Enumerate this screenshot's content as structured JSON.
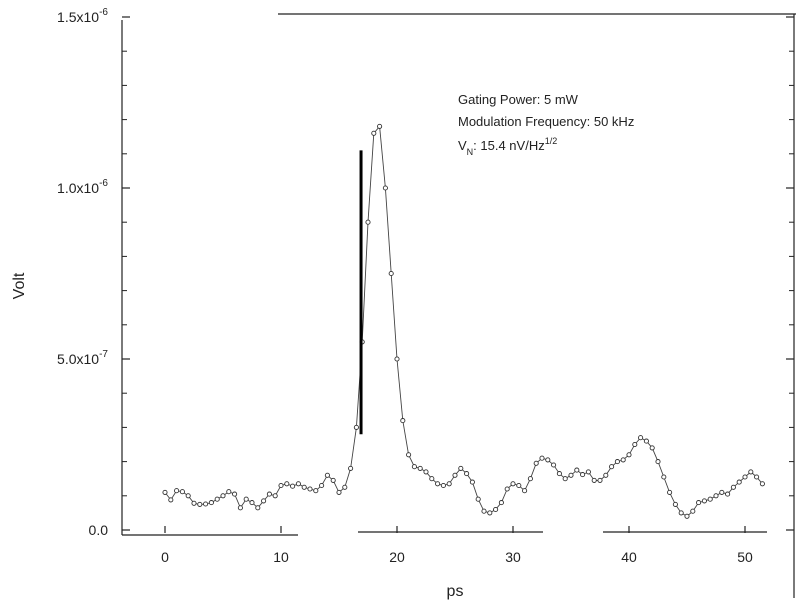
{
  "chart_data": {
    "type": "scatter",
    "title": "",
    "xlabel": "ps",
    "ylabel": "Volt",
    "xlim": [
      -3.5,
      53
    ],
    "ylim": [
      -2e-08,
      1.5e-06
    ],
    "x_ticks": [
      0,
      10,
      20,
      30,
      40,
      50
    ],
    "x_tick_labels": [
      "0",
      "10",
      "20",
      "30",
      "40",
      "50"
    ],
    "y_ticks": [
      0,
      5e-07,
      1e-06,
      1.5e-06
    ],
    "y_tick_labels": [
      {
        "mantissa": "0.0",
        "exponent": ""
      },
      {
        "mantissa": "5.0x10",
        "exponent": "-7"
      },
      {
        "mantissa": "1.0x10",
        "exponent": "-6"
      },
      {
        "mantissa": "1.5x10",
        "exponent": "-6"
      }
    ],
    "grid": false,
    "annotations": {
      "gating": "Gating Power: 5 mW",
      "modulation": "Modulation Frequency: 50 kHz",
      "vn_main": "V",
      "vn_sub": "N",
      "vn_rest": ": 15.4 nV/Hz",
      "vn_sup": "1/2"
    },
    "marker_line": {
      "x": 16.9,
      "y_from": 2.8e-07,
      "y_to": 1.11e-06
    },
    "series": [
      {
        "points": [
          [
            0.0,
            1.1e-07
          ],
          [
            0.5,
            8.8e-08
          ],
          [
            1.0,
            1.15e-07
          ],
          [
            1.5,
            1.12e-07
          ],
          [
            2.0,
            1e-07
          ],
          [
            2.5,
            7.8e-08
          ],
          [
            3.0,
            7.5e-08
          ],
          [
            3.5,
            7.6e-08
          ],
          [
            4.0,
            8e-08
          ],
          [
            4.5,
            9e-08
          ],
          [
            5.0,
            1e-07
          ],
          [
            5.5,
            1.12e-07
          ],
          [
            6.0,
            1.05e-07
          ],
          [
            6.5,
            6.5e-08
          ],
          [
            7.0,
            9e-08
          ],
          [
            7.5,
            8e-08
          ],
          [
            8.0,
            6.5e-08
          ],
          [
            8.5,
            8.5e-08
          ],
          [
            9.0,
            1.05e-07
          ],
          [
            9.5,
            1e-07
          ],
          [
            10.0,
            1.3e-07
          ],
          [
            10.5,
            1.35e-07
          ],
          [
            11.0,
            1.28e-07
          ],
          [
            11.5,
            1.35e-07
          ],
          [
            12.0,
            1.25e-07
          ],
          [
            12.5,
            1.2e-07
          ],
          [
            13.0,
            1.15e-07
          ],
          [
            13.5,
            1.3e-07
          ],
          [
            14.0,
            1.6e-07
          ],
          [
            14.5,
            1.45e-07
          ],
          [
            15.0,
            1.1e-07
          ],
          [
            15.5,
            1.25e-07
          ],
          [
            16.0,
            1.8e-07
          ],
          [
            16.5,
            3e-07
          ],
          [
            17.0,
            5.5e-07
          ],
          [
            17.5,
            9e-07
          ],
          [
            18.0,
            1.16e-06
          ],
          [
            18.5,
            1.18e-06
          ],
          [
            19.0,
            1e-06
          ],
          [
            19.5,
            7.5e-07
          ],
          [
            20.0,
            5e-07
          ],
          [
            20.5,
            3.2e-07
          ],
          [
            21.0,
            2.2e-07
          ],
          [
            21.5,
            1.85e-07
          ],
          [
            22.0,
            1.8e-07
          ],
          [
            22.5,
            1.7e-07
          ],
          [
            23.0,
            1.5e-07
          ],
          [
            23.5,
            1.35e-07
          ],
          [
            24.0,
            1.3e-07
          ],
          [
            24.5,
            1.35e-07
          ],
          [
            25.0,
            1.6e-07
          ],
          [
            25.5,
            1.8e-07
          ],
          [
            26.0,
            1.65e-07
          ],
          [
            26.5,
            1.4e-07
          ],
          [
            27.0,
            9e-08
          ],
          [
            27.5,
            5.5e-08
          ],
          [
            28.0,
            5e-08
          ],
          [
            28.5,
            6e-08
          ],
          [
            29.0,
            8e-08
          ],
          [
            29.5,
            1.2e-07
          ],
          [
            30.0,
            1.35e-07
          ],
          [
            30.5,
            1.3e-07
          ],
          [
            31.0,
            1.15e-07
          ],
          [
            31.5,
            1.5e-07
          ],
          [
            32.0,
            1.95e-07
          ],
          [
            32.5,
            2.1e-07
          ],
          [
            33.0,
            2.05e-07
          ],
          [
            33.5,
            1.9e-07
          ],
          [
            34.0,
            1.65e-07
          ],
          [
            34.5,
            1.5e-07
          ],
          [
            35.0,
            1.6e-07
          ],
          [
            35.5,
            1.75e-07
          ],
          [
            36.0,
            1.62e-07
          ],
          [
            36.5,
            1.7e-07
          ],
          [
            37.0,
            1.45e-07
          ],
          [
            37.5,
            1.45e-07
          ],
          [
            38.0,
            1.6e-07
          ],
          [
            38.5,
            1.85e-07
          ],
          [
            39.0,
            2e-07
          ],
          [
            39.5,
            2.05e-07
          ],
          [
            40.0,
            2.2e-07
          ],
          [
            40.5,
            2.5e-07
          ],
          [
            41.0,
            2.7e-07
          ],
          [
            41.5,
            2.6e-07
          ],
          [
            42.0,
            2.4e-07
          ],
          [
            42.5,
            2e-07
          ],
          [
            43.0,
            1.55e-07
          ],
          [
            43.5,
            1.1e-07
          ],
          [
            44.0,
            7.5e-08
          ],
          [
            44.5,
            5e-08
          ],
          [
            45.0,
            4e-08
          ],
          [
            45.5,
            5.5e-08
          ],
          [
            46.0,
            8e-08
          ],
          [
            46.5,
            8.5e-08
          ],
          [
            47.0,
            9e-08
          ],
          [
            47.5,
            1e-07
          ],
          [
            48.0,
            1.1e-07
          ],
          [
            48.5,
            1.05e-07
          ],
          [
            49.0,
            1.25e-07
          ],
          [
            49.5,
            1.4e-07
          ],
          [
            50.0,
            1.55e-07
          ],
          [
            50.5,
            1.7e-07
          ],
          [
            51.0,
            1.55e-07
          ],
          [
            51.5,
            1.35e-07
          ]
        ]
      }
    ]
  }
}
